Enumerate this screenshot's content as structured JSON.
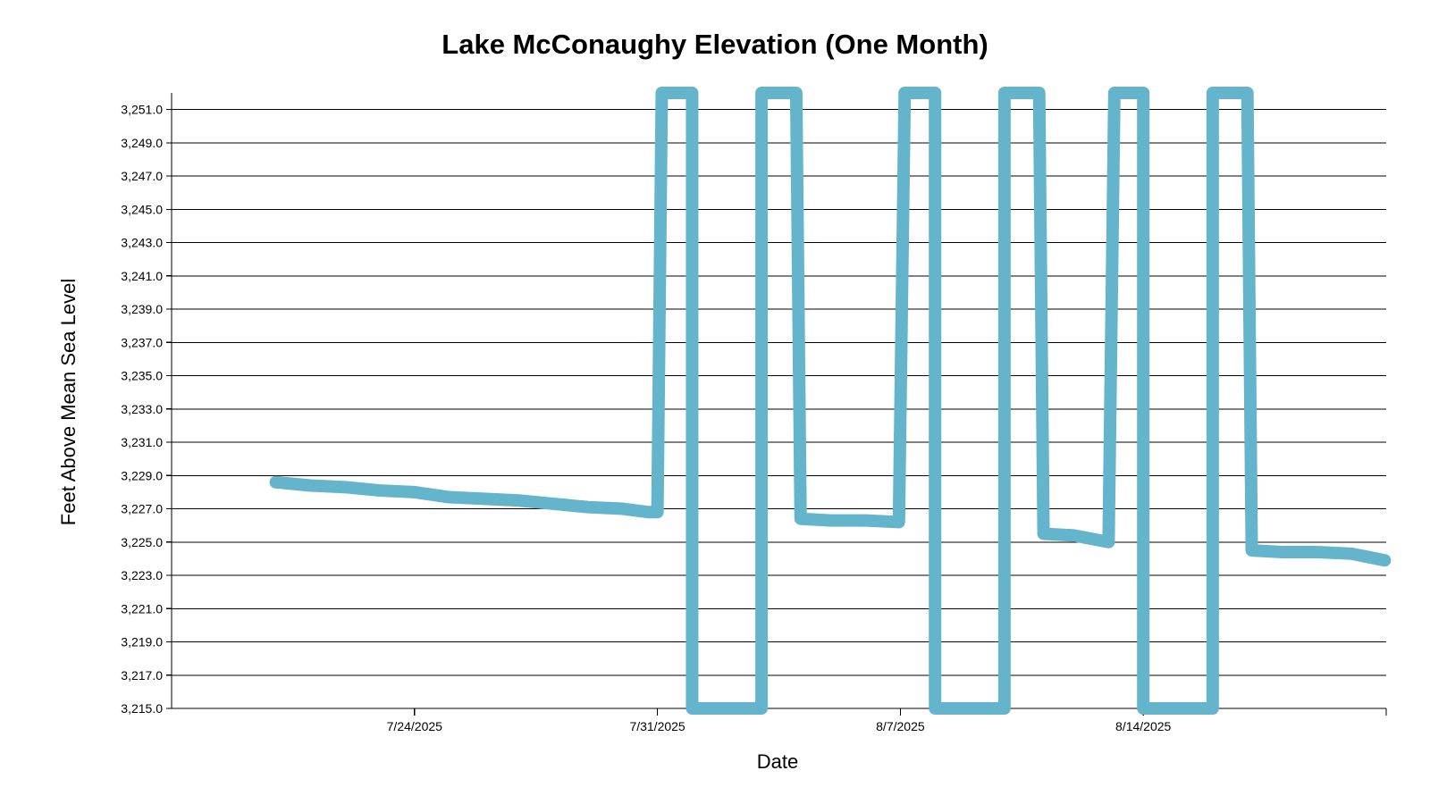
{
  "chart_data": {
    "type": "line",
    "title": "Lake McConaughy Elevation (One Month)",
    "xlabel": "Date",
    "ylabel": "Feet Above Mean Sea Level",
    "x_tick_labels": [
      "7/24/2025",
      "7/31/2025",
      "8/7/2025",
      "8/14/2025"
    ],
    "y_tick_labels": [
      "3,215.0",
      "3,217.0",
      "3,219.0",
      "3,221.0",
      "3,223.0",
      "3,225.0",
      "3,227.0",
      "3,229.0",
      "3,231.0",
      "3,233.0",
      "3,235.0",
      "3,237.0",
      "3,239.0",
      "3,241.0",
      "3,243.0",
      "3,245.0",
      "3,247.0",
      "3,249.0",
      "3,251.0"
    ],
    "ylim": [
      3215,
      3252
    ],
    "xlim": [
      "2025-07-17",
      "2025-08-21"
    ],
    "grid": true,
    "legend": "none",
    "colors": {
      "series": "#64b5cc"
    },
    "series": [
      {
        "points": [
          [
            "2025-07-20",
            3228.6
          ],
          [
            "2025-07-21",
            3228.4
          ],
          [
            "2025-07-22",
            3228.3
          ],
          [
            "2025-07-23",
            3228.1
          ],
          [
            "2025-07-24",
            3228.0
          ],
          [
            "2025-07-25",
            3227.7
          ],
          [
            "2025-07-26",
            3227.6
          ],
          [
            "2025-07-27",
            3227.5
          ],
          [
            "2025-07-28",
            3227.3
          ],
          [
            "2025-07-29",
            3227.1
          ],
          [
            "2025-07-30",
            3227.0
          ],
          [
            "2025-07-30T18:00",
            3226.8
          ],
          [
            "2025-07-31",
            3226.8
          ],
          [
            "2025-07-31T03:00",
            3252.0
          ],
          [
            "2025-08-01",
            3252.0
          ],
          [
            "2025-08-01",
            3215.0
          ],
          [
            "2025-08-03",
            3215.0
          ],
          [
            "2025-08-03",
            3252.0
          ],
          [
            "2025-08-04",
            3252.0
          ],
          [
            "2025-08-04T03:00",
            3226.4
          ],
          [
            "2025-08-05",
            3226.3
          ],
          [
            "2025-08-06",
            3226.3
          ],
          [
            "2025-08-06T23:00",
            3226.2
          ],
          [
            "2025-08-07T03:00",
            3252.0
          ],
          [
            "2025-08-08",
            3252.0
          ],
          [
            "2025-08-08",
            3215.0
          ],
          [
            "2025-08-10",
            3215.0
          ],
          [
            "2025-08-10",
            3252.0
          ],
          [
            "2025-08-11",
            3252.0
          ],
          [
            "2025-08-11T03:00",
            3225.5
          ],
          [
            "2025-08-12",
            3225.4
          ],
          [
            "2025-08-13",
            3225.0
          ],
          [
            "2025-08-13T04:00",
            3252.0
          ],
          [
            "2025-08-14",
            3252.0
          ],
          [
            "2025-08-14",
            3215.0
          ],
          [
            "2025-08-16",
            3215.0
          ],
          [
            "2025-08-16",
            3252.0
          ],
          [
            "2025-08-17",
            3252.0
          ],
          [
            "2025-08-17T03:00",
            3224.5
          ],
          [
            "2025-08-18",
            3224.4
          ],
          [
            "2025-08-19",
            3224.4
          ],
          [
            "2025-08-20",
            3224.3
          ],
          [
            "2025-08-20T23:00",
            3223.9
          ]
        ]
      }
    ]
  }
}
